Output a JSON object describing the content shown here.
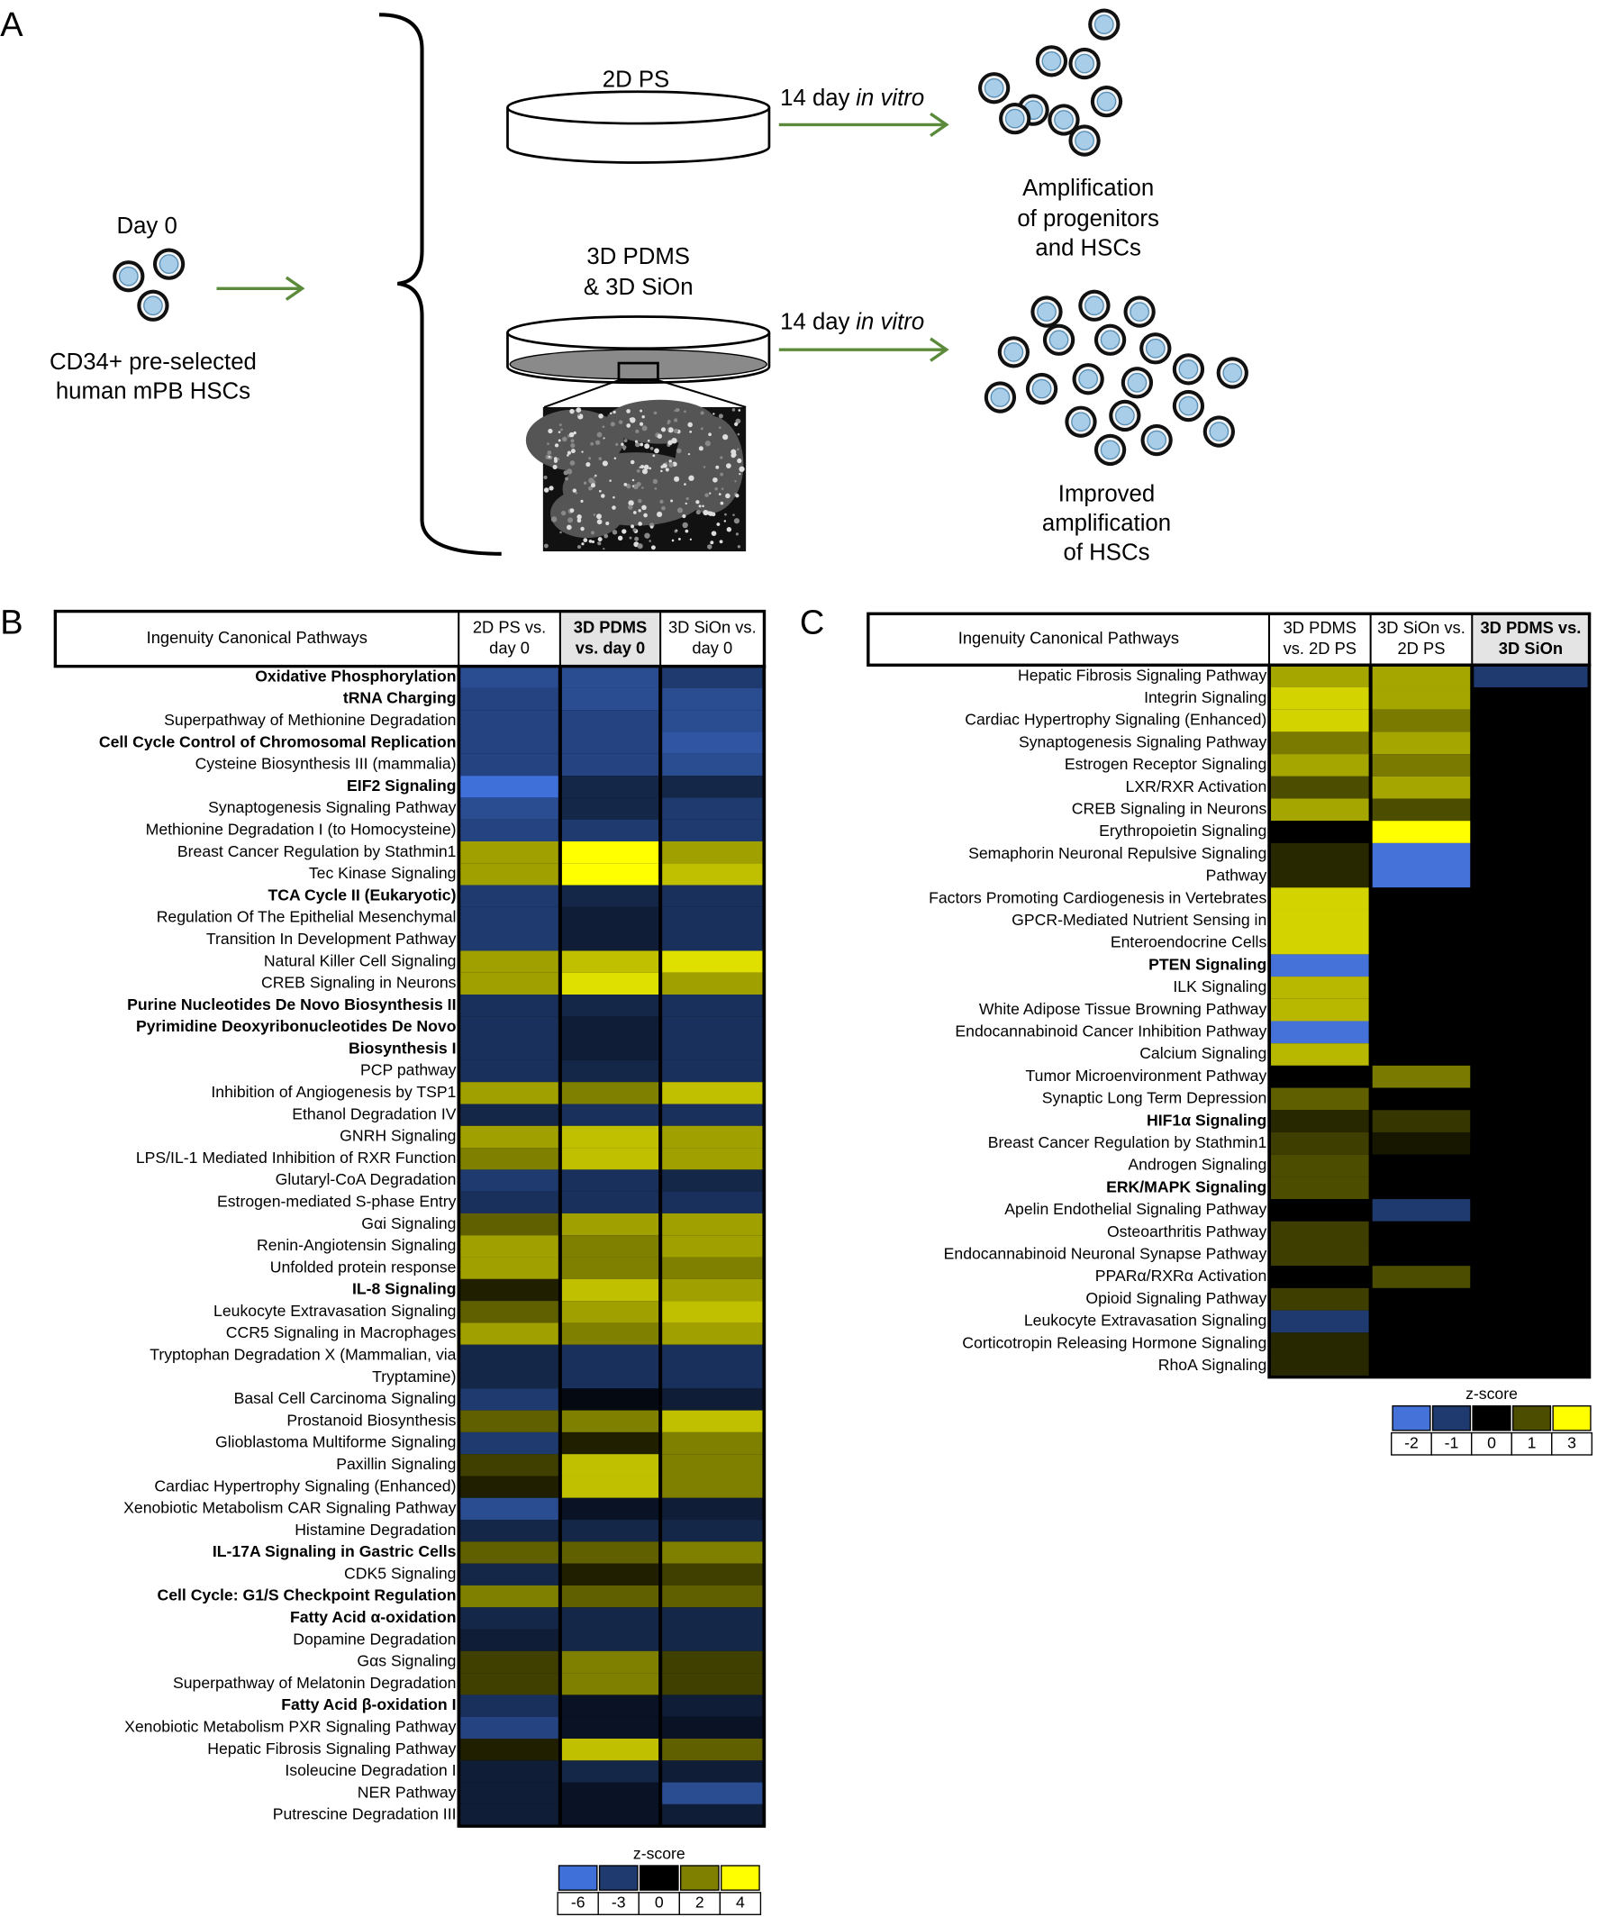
{
  "panel_a": {
    "label": "A",
    "day0": "Day 0",
    "source": [
      "CD34+ pre-selected",
      "human mPB HSCs"
    ],
    "dish_2d": "2D PS",
    "dish_3d": [
      "3D PDMS",
      "& 3D SiOn"
    ],
    "culture": [
      "14 day",
      "in vitro"
    ],
    "result_2d": [
      "Amplification",
      "of progenitors",
      "and HSCs"
    ],
    "result_3d": [
      "Improved",
      "amplification",
      "of HSCs"
    ]
  },
  "panel_b": {
    "label": "B",
    "header": "Ingenuity Canonical Pathways",
    "columns": [
      {
        "lines": [
          "2D PS vs.",
          "day 0"
        ],
        "bold": false
      },
      {
        "lines": [
          "3D PDMS",
          "vs. day 0"
        ],
        "bold": true
      },
      {
        "lines": [
          "3D SiOn vs.",
          "day 0"
        ],
        "bold": false
      }
    ],
    "rows": [
      {
        "label": [
          "Oxidative Phosphorylation"
        ],
        "bold": true,
        "values": [
          -4,
          -4,
          -3
        ]
      },
      {
        "label": [
          "tRNA Charging"
        ],
        "bold": true,
        "values": [
          -3.5,
          -4,
          -4
        ]
      },
      {
        "label": [
          "Superpathway of Methionine Degradation"
        ],
        "bold": false,
        "values": [
          -3.5,
          -3.5,
          -4
        ]
      },
      {
        "label": [
          "Cell Cycle Control of Chromosomal Replication"
        ],
        "bold": true,
        "values": [
          -3.5,
          -3.5,
          -4.5
        ]
      },
      {
        "label": [
          "Cysteine Biosynthesis III (mammalia)"
        ],
        "bold": false,
        "values": [
          -3.5,
          -3.5,
          -4
        ]
      },
      {
        "label": [
          "EIF2 Signaling"
        ],
        "bold": true,
        "values": [
          -6,
          -2,
          -2
        ]
      },
      {
        "label": [
          "Synaptogenesis Signaling Pathway"
        ],
        "bold": false,
        "values": [
          -4,
          -2,
          -3
        ]
      },
      {
        "label": [
          "Methionine Degradation I (to Homocysteine)"
        ],
        "bold": false,
        "values": [
          -3.5,
          -3,
          -3
        ]
      },
      {
        "label": [
          "Breast Cancer Regulation by Stathmin1"
        ],
        "bold": false,
        "values": [
          2.5,
          4,
          2.5
        ]
      },
      {
        "label": [
          "Tec Kinase Signaling"
        ],
        "bold": false,
        "values": [
          2.5,
          4,
          3
        ]
      },
      {
        "label": [
          "TCA Cycle II (Eukaryotic)"
        ],
        "bold": true,
        "values": [
          -3,
          -2,
          -2.5
        ]
      },
      {
        "label": [
          "Regulation Of The Epithelial Mesenchymal",
          "Transition In Development Pathway"
        ],
        "bold": false,
        "values": [
          -3,
          -1.5,
          -2.5
        ]
      },
      {
        "label": [
          "Natural Killer Cell Signaling"
        ],
        "bold": false,
        "values": [
          2.5,
          3,
          3.5
        ]
      },
      {
        "label": [
          "CREB Signaling in Neurons"
        ],
        "bold": false,
        "values": [
          2.5,
          3.5,
          2.5
        ]
      },
      {
        "label": [
          "Purine Nucleotides De Novo Biosynthesis II"
        ],
        "bold": true,
        "values": [
          -2.5,
          -2,
          -2.5
        ]
      },
      {
        "label": [
          "Pyrimidine Deoxyribonucleotides De Novo",
          "Biosynthesis I"
        ],
        "bold": true,
        "values": [
          -2.5,
          -1.5,
          -2.5
        ]
      },
      {
        "label": [
          "PCP pathway"
        ],
        "bold": false,
        "values": [
          -2.5,
          -2,
          -2.5
        ]
      },
      {
        "label": [
          "Inhibition of Angiogenesis by TSP1"
        ],
        "bold": false,
        "values": [
          2.5,
          2,
          3
        ]
      },
      {
        "label": [
          "Ethanol Degradation IV"
        ],
        "bold": false,
        "values": [
          -2,
          -2.5,
          -2.5
        ]
      },
      {
        "label": [
          "GNRH Signaling"
        ],
        "bold": false,
        "values": [
          2.5,
          3,
          2.5
        ]
      },
      {
        "label": [
          "LPS/IL-1 Mediated Inhibition of RXR Function"
        ],
        "bold": false,
        "values": [
          2,
          3,
          2.5
        ]
      },
      {
        "label": [
          "Glutaryl-CoA Degradation"
        ],
        "bold": false,
        "values": [
          -3,
          -2.5,
          -2
        ]
      },
      {
        "label": [
          "Estrogen-mediated S-phase Entry"
        ],
        "bold": false,
        "values": [
          -2.5,
          -2.5,
          -2.5
        ]
      },
      {
        "label": [
          "Gαi Signaling"
        ],
        "bold": false,
        "values": [
          1.5,
          2.5,
          2.5
        ]
      },
      {
        "label": [
          "Renin-Angiotensin Signaling"
        ],
        "bold": false,
        "values": [
          2.5,
          2,
          2.5
        ]
      },
      {
        "label": [
          "Unfolded protein response"
        ],
        "bold": false,
        "values": [
          2.5,
          2,
          2
        ]
      },
      {
        "label": [
          "IL-8 Signaling"
        ],
        "bold": true,
        "values": [
          0.5,
          3,
          2.5
        ]
      },
      {
        "label": [
          "Leukocyte Extravasation Signaling"
        ],
        "bold": false,
        "values": [
          1.5,
          2.5,
          3
        ]
      },
      {
        "label": [
          "CCR5 Signaling in Macrophages"
        ],
        "bold": false,
        "values": [
          2.5,
          2,
          2.5
        ]
      },
      {
        "label": [
          "Tryptophan Degradation X (Mammalian, via",
          "Tryptamine)"
        ],
        "bold": false,
        "values": [
          -2,
          -2.5,
          -2.5
        ]
      },
      {
        "label": [
          "Basal Cell Carcinoma Signaling"
        ],
        "bold": false,
        "values": [
          -3,
          -0.5,
          -1.5
        ]
      },
      {
        "label": [
          "Prostanoid Biosynthesis"
        ],
        "bold": false,
        "values": [
          1.5,
          2,
          3
        ]
      },
      {
        "label": [
          "Glioblastoma Multiforme Signaling"
        ],
        "bold": false,
        "values": [
          -3,
          0.5,
          2
        ]
      },
      {
        "label": [
          "Paxillin Signaling"
        ],
        "bold": false,
        "values": [
          1,
          3,
          2
        ]
      },
      {
        "label": [
          "Cardiac Hypertrophy Signaling (Enhanced)"
        ],
        "bold": false,
        "values": [
          0.5,
          3,
          2
        ]
      },
      {
        "label": [
          "Xenobiotic Metabolism CAR Signaling Pathway"
        ],
        "bold": false,
        "values": [
          -4,
          -1,
          -1.5
        ]
      },
      {
        "label": [
          "Histamine Degradation"
        ],
        "bold": false,
        "values": [
          -2,
          -2,
          -2
        ]
      },
      {
        "label": [
          "IL-17A Signaling in Gastric Cells"
        ],
        "bold": true,
        "values": [
          1.5,
          1.5,
          2
        ]
      },
      {
        "label": [
          "CDK5 Signaling"
        ],
        "bold": false,
        "values": [
          -2,
          0.5,
          1
        ]
      },
      {
        "label": [
          "Cell Cycle: G1/S Checkpoint Regulation"
        ],
        "bold": true,
        "values": [
          2,
          1.5,
          1.5
        ]
      },
      {
        "label": [
          "Fatty Acid α-oxidation"
        ],
        "bold": true,
        "values": [
          -2,
          -2,
          -2
        ]
      },
      {
        "label": [
          "Dopamine Degradation"
        ],
        "bold": false,
        "values": [
          -1.5,
          -2,
          -2
        ]
      },
      {
        "label": [
          "Gαs Signaling"
        ],
        "bold": false,
        "values": [
          1,
          2,
          1
        ]
      },
      {
        "label": [
          "Superpathway of Melatonin Degradation"
        ],
        "bold": false,
        "values": [
          1,
          2,
          1
        ]
      },
      {
        "label": [
          "Fatty Acid β-oxidation I"
        ],
        "bold": true,
        "values": [
          -2.5,
          -1,
          -1.5
        ]
      },
      {
        "label": [
          "Xenobiotic Metabolism PXR Signaling Pathway"
        ],
        "bold": false,
        "values": [
          -3.5,
          -1,
          -1
        ]
      },
      {
        "label": [
          "Hepatic Fibrosis Signaling Pathway"
        ],
        "bold": false,
        "values": [
          0.5,
          3,
          1.5
        ]
      },
      {
        "label": [
          "Isoleucine Degradation I"
        ],
        "bold": false,
        "values": [
          -1.5,
          -2,
          -1.5
        ]
      },
      {
        "label": [
          "NER Pathway"
        ],
        "bold": false,
        "values": [
          -1.5,
          -1,
          -4
        ]
      },
      {
        "label": [
          "Putrescine Degradation III"
        ],
        "bold": false,
        "values": [
          -1.5,
          -1,
          -1.5
        ]
      }
    ],
    "legend": {
      "title": "z-score",
      "ticks": [
        -6,
        -3,
        0,
        2,
        4
      ],
      "colors": [
        "#3f6fd8",
        "#1f3a6e",
        "#000000",
        "#808000",
        "#ffff00"
      ]
    }
  },
  "panel_c": {
    "label": "C",
    "header": "Ingenuity Canonical Pathways",
    "columns": [
      {
        "lines": [
          "3D PDMS",
          "vs. 2D PS"
        ],
        "bold": false
      },
      {
        "lines": [
          "3D SiOn vs.",
          "2D PS"
        ],
        "bold": false
      },
      {
        "lines": [
          "3D PDMS vs.",
          "3D SiOn"
        ],
        "bold": true
      }
    ],
    "rows": [
      {
        "label": [
          "Hepatic Fibrosis Signaling Pathway"
        ],
        "bold": false,
        "values": [
          2,
          2,
          -1
        ]
      },
      {
        "label": [
          "Integrin Signaling"
        ],
        "bold": false,
        "values": [
          2.5,
          2,
          0
        ]
      },
      {
        "label": [
          "Cardiac Hypertrophy Signaling (Enhanced)"
        ],
        "bold": false,
        "values": [
          2.5,
          1.5,
          0
        ]
      },
      {
        "label": [
          "Synaptogenesis Signaling Pathway"
        ],
        "bold": false,
        "values": [
          1.5,
          2,
          0
        ]
      },
      {
        "label": [
          "Estrogen Receptor Signaling"
        ],
        "bold": false,
        "values": [
          2,
          1.5,
          0
        ]
      },
      {
        "label": [
          "LXR/RXR Activation"
        ],
        "bold": false,
        "values": [
          1,
          2,
          0
        ]
      },
      {
        "label": [
          "CREB Signaling in Neurons"
        ],
        "bold": false,
        "values": [
          2,
          1,
          0
        ]
      },
      {
        "label": [
          "Erythropoietin Signaling"
        ],
        "bold": false,
        "values": [
          0,
          3,
          0
        ]
      },
      {
        "label": [
          "Semaphorin Neuronal Repulsive Signaling",
          "Pathway"
        ],
        "bold": false,
        "values": [
          0.5,
          -2,
          0
        ]
      },
      {
        "label": [
          "Factors Promoting Cardiogenesis in Vertebrates"
        ],
        "bold": false,
        "values": [
          2.5,
          0,
          0
        ]
      },
      {
        "label": [
          "GPCR-Mediated Nutrient Sensing in",
          "Enteroendocrine Cells"
        ],
        "bold": false,
        "values": [
          2.5,
          0,
          0
        ]
      },
      {
        "label": [
          "PTEN Signaling"
        ],
        "bold": true,
        "values": [
          -2,
          0,
          0
        ]
      },
      {
        "label": [
          "ILK Signaling"
        ],
        "bold": false,
        "values": [
          2.2,
          0,
          0
        ]
      },
      {
        "label": [
          "White Adipose Tissue Browning Pathway"
        ],
        "bold": false,
        "values": [
          2.2,
          0,
          0
        ]
      },
      {
        "label": [
          "Endocannabinoid Cancer Inhibition Pathway"
        ],
        "bold": false,
        "values": [
          -2,
          0,
          0
        ]
      },
      {
        "label": [
          "Calcium Signaling"
        ],
        "bold": false,
        "values": [
          2.2,
          0,
          0
        ]
      },
      {
        "label": [
          "Tumor Microenvironment Pathway"
        ],
        "bold": false,
        "values": [
          0,
          1.5,
          0
        ]
      },
      {
        "label": [
          "Synaptic Long Term Depression"
        ],
        "bold": false,
        "values": [
          1.2,
          0,
          0
        ]
      },
      {
        "label": [
          "HIF1α Signaling"
        ],
        "bold": true,
        "values": [
          0.5,
          0.7,
          0
        ]
      },
      {
        "label": [
          "Breast Cancer Regulation by Stathmin1"
        ],
        "bold": false,
        "values": [
          0.8,
          0.3,
          0
        ]
      },
      {
        "label": [
          "Androgen Signaling"
        ],
        "bold": false,
        "values": [
          1,
          0,
          0
        ]
      },
      {
        "label": [
          "ERK/MAPK Signaling"
        ],
        "bold": true,
        "values": [
          1,
          0,
          0
        ]
      },
      {
        "label": [
          "Apelin Endothelial Signaling Pathway"
        ],
        "bold": false,
        "values": [
          0,
          -1,
          0
        ]
      },
      {
        "label": [
          "Osteoarthritis Pathway"
        ],
        "bold": false,
        "values": [
          0.8,
          0,
          0
        ]
      },
      {
        "label": [
          "Endocannabinoid Neuronal Synapse Pathway"
        ],
        "bold": false,
        "values": [
          0.8,
          0,
          0
        ]
      },
      {
        "label": [
          "PPARα/RXRα Activation"
        ],
        "bold": false,
        "values": [
          0,
          1,
          0
        ]
      },
      {
        "label": [
          "Opioid Signaling Pathway"
        ],
        "bold": false,
        "values": [
          0.8,
          0,
          0
        ]
      },
      {
        "label": [
          "Leukocyte Extravasation Signaling"
        ],
        "bold": false,
        "values": [
          -1,
          0,
          0
        ]
      },
      {
        "label": [
          "Corticotropin Releasing Hormone Signaling"
        ],
        "bold": false,
        "values": [
          0.5,
          0,
          0
        ]
      },
      {
        "label": [
          "RhoA Signaling"
        ],
        "bold": false,
        "values": [
          0.5,
          0,
          0
        ]
      }
    ],
    "legend": {
      "title": "z-score",
      "ticks": [
        -2,
        -1,
        0,
        1,
        3
      ],
      "colors": [
        "#4472d8",
        "#1f3a6e",
        "#000000",
        "#4d4d00",
        "#ffff00"
      ]
    }
  }
}
